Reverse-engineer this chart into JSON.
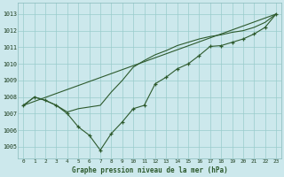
{
  "title": "Graphe pression niveau de la mer (hPa)",
  "bg_color": "#cce8ec",
  "grid_color": "#99cccc",
  "line_color": "#2d5a2d",
  "xlim": [
    -0.5,
    23.5
  ],
  "ylim": [
    1004.3,
    1013.7
  ],
  "yticks": [
    1005,
    1006,
    1007,
    1008,
    1009,
    1010,
    1011,
    1012,
    1013
  ],
  "xticks": [
    0,
    1,
    2,
    3,
    4,
    5,
    6,
    7,
    8,
    9,
    10,
    11,
    12,
    13,
    14,
    15,
    16,
    17,
    18,
    19,
    20,
    21,
    22,
    23
  ],
  "line_dotted_markers": [
    1007.5,
    1008.0,
    1007.8,
    1007.5,
    1007.0,
    1006.2,
    1005.7,
    1004.8,
    1005.8,
    1006.5,
    1007.3,
    1007.5,
    1008.8,
    1009.2,
    1009.7,
    1010.0,
    1010.5,
    1011.05,
    1011.1,
    1011.3,
    1011.5,
    1011.8,
    1012.2,
    1013.0
  ],
  "line_steep": [
    1007.5,
    1008.0,
    1007.8,
    1007.5,
    1007.1,
    1007.3,
    1007.4,
    1007.5,
    1008.3,
    1009.0,
    1009.8,
    1010.2,
    1010.55,
    1010.8,
    1011.1,
    1011.3,
    1011.5,
    1011.65,
    1011.75,
    1011.9,
    1012.0,
    1012.2,
    1012.5,
    1013.0
  ],
  "line_straight": [
    1007.5,
    1013.0
  ]
}
